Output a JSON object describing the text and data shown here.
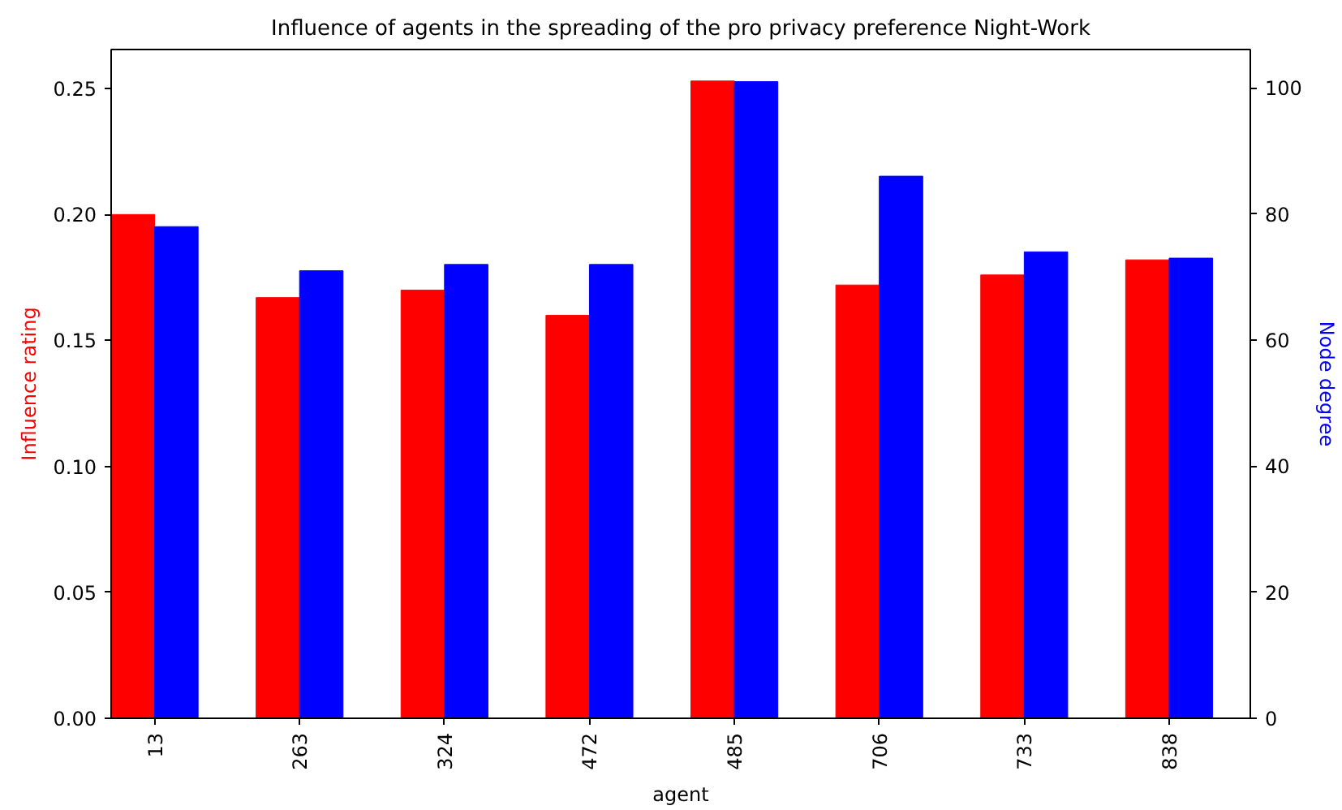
{
  "chart_data": {
    "type": "bar",
    "title": "Influence of agents in the spreading of the pro privacy preference Night-Work",
    "xlabel": "agent",
    "ylabel": "Influence rating",
    "y2label": "Node degree",
    "categories": [
      "13",
      "263",
      "324",
      "472",
      "485",
      "706",
      "733",
      "838"
    ],
    "series": [
      {
        "name": null,
        "color": "#ff0000",
        "values": [
          0.2,
          0.167,
          0.17,
          0.16,
          0.253,
          0.172,
          0.176,
          0.182
        ]
      },
      {
        "name": null,
        "color": "#0000ff",
        "axis": "y2",
        "values": [
          78,
          71,
          72,
          72,
          101,
          86,
          74,
          73
        ]
      }
    ],
    "ylim": [
      0,
      0.2655
    ],
    "yticks": [
      {
        "value": 0,
        "label": "0.00"
      },
      0.05,
      {
        "value": 0.1,
        "label": "0.10"
      },
      0.15,
      {
        "value": 0.2,
        "label": "0.20"
      },
      0.25
    ],
    "y2lim": [
      0,
      106.1
    ],
    "y2ticks": [
      0,
      20,
      40,
      60,
      80,
      100
    ],
    "grid": false
  }
}
